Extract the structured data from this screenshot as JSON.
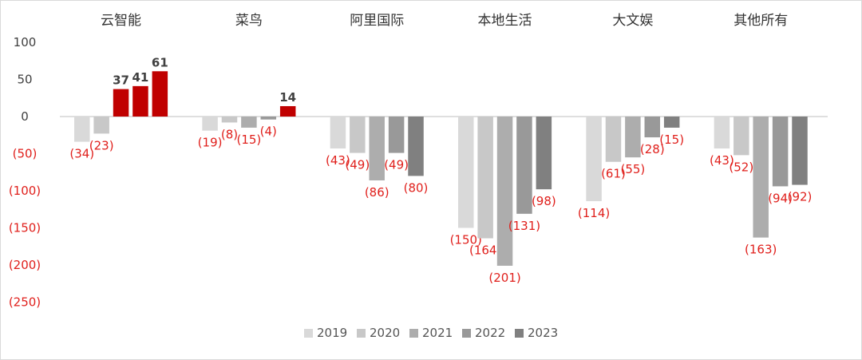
{
  "chart_data": {
    "type": "bar",
    "categories": [
      "云智能",
      "菜鸟",
      "阿里国际",
      "本地生活",
      "大文娱",
      "其他所有"
    ],
    "series": [
      {
        "name": "2019",
        "values": [
          -34,
          -19,
          -43,
          -150,
          -114,
          -43
        ]
      },
      {
        "name": "2020",
        "values": [
          -23,
          -8,
          -49,
          -164,
          -61,
          -52
        ]
      },
      {
        "name": "2021",
        "values": [
          37,
          -15,
          -86,
          -201,
          -55,
          -163
        ]
      },
      {
        "name": "2022",
        "values": [
          41,
          -4,
          -49,
          -131,
          -28,
          -94
        ]
      },
      {
        "name": "2023",
        "values": [
          61,
          14,
          -80,
          -98,
          -15,
          -92
        ]
      }
    ],
    "data_labels": [
      [
        "(34)",
        "(19)",
        "(43)",
        "(150)",
        "(114)",
        "(43)"
      ],
      [
        "(23)",
        "(8)",
        "(49)",
        "(164)",
        "(61)",
        "(52)"
      ],
      [
        "37",
        "(15)",
        "(86)",
        "(201)",
        "(55)",
        "(163)"
      ],
      [
        "41",
        "(4)",
        "(49)",
        "(131)",
        "(28)",
        "(94)"
      ],
      [
        "61",
        "14",
        "(80)",
        "(98)",
        "(15)",
        "(92)"
      ]
    ],
    "y_ticks": [
      100,
      50,
      0,
      -50,
      -100,
      -150,
      -200,
      -250
    ],
    "y_tick_labels": [
      "100",
      "50",
      "0",
      "(50)",
      "(100)",
      "(150)",
      "(200)",
      "(250)"
    ],
    "ylim": [
      -250,
      100
    ],
    "legend": [
      "2019",
      "2020",
      "2021",
      "2022",
      "2023"
    ],
    "legend_position": "bottom",
    "grid": false,
    "title": "",
    "xlabel": "",
    "ylabel": "",
    "colors": {
      "series": [
        "#d9d9d9",
        "#c8c8c8",
        "#adadad",
        "#999999",
        "#808080"
      ],
      "positive": "#c00000",
      "negative_text": "#e0201c",
      "positive_text": "#404040",
      "axis": "#bfbfbf"
    }
  }
}
